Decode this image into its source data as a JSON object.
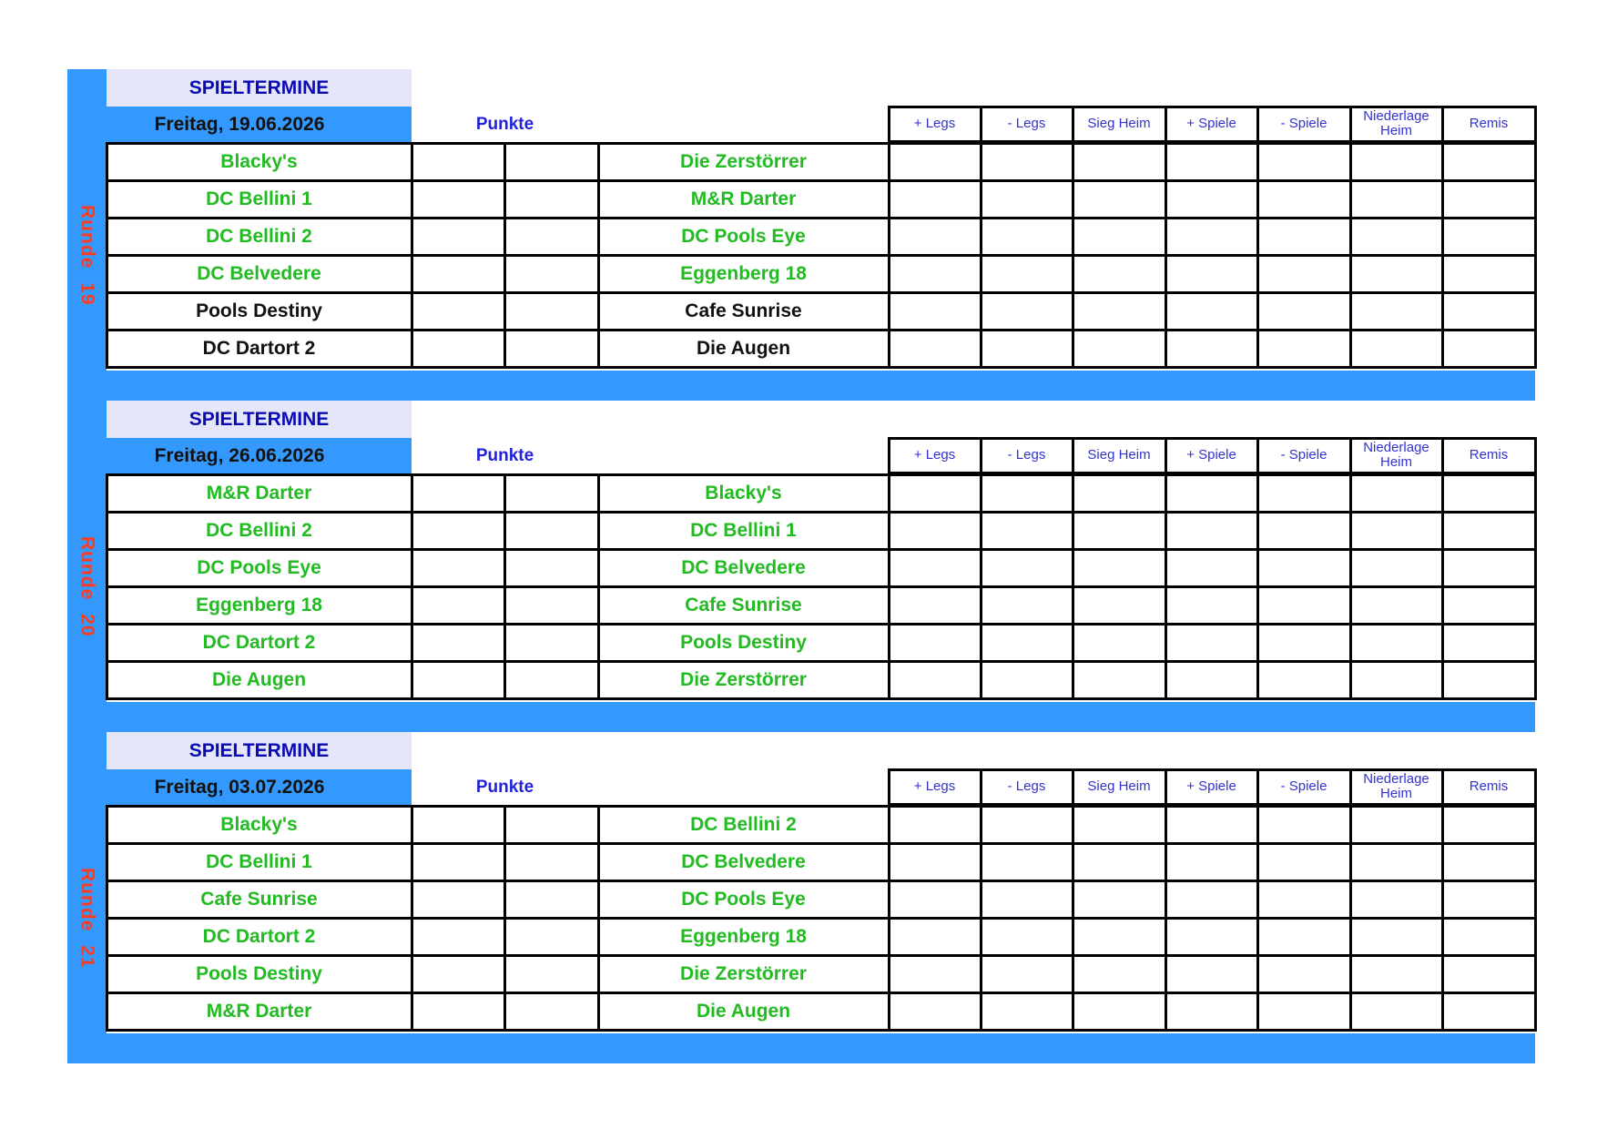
{
  "colors": {
    "band": "#3399ff",
    "header_bg": "#e6e6fa",
    "header_text": "#0a0ab4",
    "team_green": "#22bb22",
    "team_black": "#111111",
    "round_label": "#ff3b1f"
  },
  "stat_headers": [
    "+ Legs",
    "- Legs",
    "Sieg Heim",
    "+ Spiele",
    "- Spiele",
    "Niederlage Heim",
    "Remis"
  ],
  "blocks": [
    {
      "title": "SPIELTERMINE",
      "date": "Freitag, 19.06.2026",
      "points_label": "Punkte",
      "round": "Runde 19",
      "matches": [
        {
          "home": "Blacky's",
          "away": "Die Zerstörrer",
          "home_color": "green",
          "away_color": "green"
        },
        {
          "home": "DC Bellini 1",
          "away": "M&R Darter",
          "home_color": "green",
          "away_color": "green"
        },
        {
          "home": "DC Bellini 2",
          "away": "DC Pools Eye",
          "home_color": "green",
          "away_color": "green"
        },
        {
          "home": "DC Belvedere",
          "away": "Eggenberg 18",
          "home_color": "green",
          "away_color": "green"
        },
        {
          "home": "Pools Destiny",
          "away": "Cafe Sunrise",
          "home_color": "black",
          "away_color": "black"
        },
        {
          "home": "DC Dartort 2",
          "away": "Die Augen",
          "home_color": "black",
          "away_color": "black"
        }
      ]
    },
    {
      "title": "SPIELTERMINE",
      "date": "Freitag, 26.06.2026",
      "points_label": "Punkte",
      "round": "Runde 20",
      "matches": [
        {
          "home": "M&R Darter",
          "away": "Blacky's",
          "home_color": "green",
          "away_color": "green"
        },
        {
          "home": "DC Bellini 2",
          "away": "DC Bellini 1",
          "home_color": "green",
          "away_color": "green"
        },
        {
          "home": "DC Pools Eye",
          "away": "DC Belvedere",
          "home_color": "green",
          "away_color": "green"
        },
        {
          "home": "Eggenberg 18",
          "away": "Cafe Sunrise",
          "home_color": "green",
          "away_color": "green"
        },
        {
          "home": "DC Dartort 2",
          "away": "Pools Destiny",
          "home_color": "green",
          "away_color": "green"
        },
        {
          "home": "Die Augen",
          "away": "Die Zerstörrer",
          "home_color": "green",
          "away_color": "green"
        }
      ]
    },
    {
      "title": "SPIELTERMINE",
      "date": "Freitag, 03.07.2026",
      "points_label": "Punkte",
      "round": "Runde 21",
      "matches": [
        {
          "home": "Blacky's",
          "away": "DC Bellini 2",
          "home_color": "green",
          "away_color": "green"
        },
        {
          "home": "DC Bellini 1",
          "away": "DC Belvedere",
          "home_color": "green",
          "away_color": "green"
        },
        {
          "home": "Cafe Sunrise",
          "away": "DC Pools Eye",
          "home_color": "green",
          "away_color": "green"
        },
        {
          "home": "DC Dartort 2",
          "away": "Eggenberg 18",
          "home_color": "green",
          "away_color": "green"
        },
        {
          "home": "Pools Destiny",
          "away": "Die Zerstörrer",
          "home_color": "green",
          "away_color": "green"
        },
        {
          "home": "M&R Darter",
          "away": "Die Augen",
          "home_color": "green",
          "away_color": "green"
        }
      ]
    }
  ]
}
